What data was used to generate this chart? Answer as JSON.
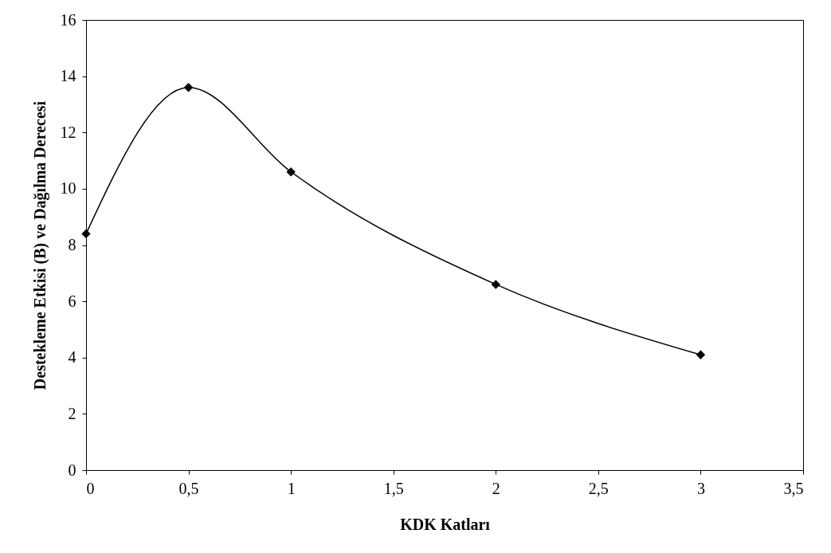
{
  "chart_data": {
    "type": "line",
    "xlabel": "KDK Katları",
    "ylabel": "Destekleme Etkisi (B) ve Dağılma Derecesi",
    "x": [
      0,
      0.5,
      1,
      2,
      3
    ],
    "series": [
      {
        "color": "#000000",
        "values": [
          8.4,
          13.6,
          10.6,
          6.6,
          4.1
        ]
      }
    ],
    "xlim": [
      0,
      3.5
    ],
    "xticks": [
      0,
      {
        "value": 0.5,
        "label": "0,5"
      },
      1,
      {
        "value": 1.5,
        "label": "1,5"
      },
      2,
      {
        "value": 2.5,
        "label": "2,5"
      },
      3,
      {
        "value": 3.5,
        "label": "3,5"
      }
    ],
    "ylim": [
      0,
      16
    ],
    "yticks": [
      0,
      2,
      4,
      6,
      8,
      10,
      12,
      14,
      16
    ],
    "grid": false,
    "marker": "diamond",
    "line_style": "solid"
  }
}
